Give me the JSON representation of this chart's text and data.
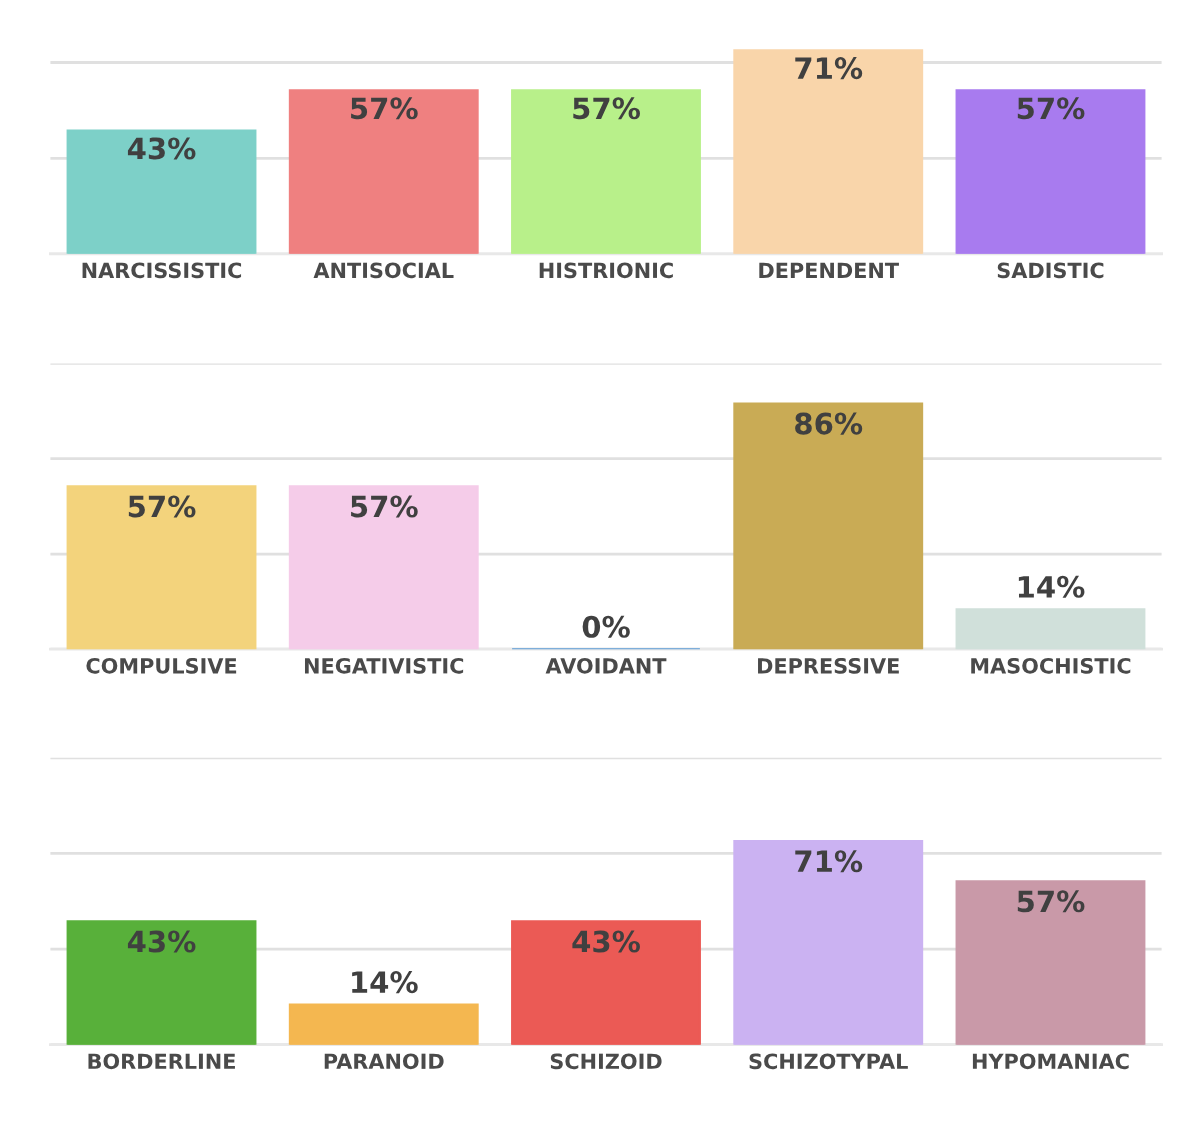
{
  "chart_data": [
    {
      "type": "bar",
      "categories": [
        "NARCISSISTIC",
        "ANTISOCIAL",
        "HISTRIONIC",
        "DEPENDENT",
        "SADISTIC"
      ],
      "values": [
        43,
        57,
        57,
        71,
        57
      ],
      "value_labels": [
        "43%",
        "57%",
        "57%",
        "71%",
        "57%"
      ],
      "colors": [
        "#7dd0c8",
        "#ef8080",
        "#b8f08a",
        "#f9d5aa",
        "#a87bef"
      ],
      "ref_lines": [
        {
          "axis": "y",
          "value": 33.3,
          "color": "#e0e0e0"
        },
        {
          "axis": "y",
          "value": 66.7,
          "color": "#e0e0e0"
        }
      ],
      "tick_labels": "x"
    },
    {
      "type": "bar",
      "categories": [
        "COMPULSIVE",
        "NEGATIVISTIC",
        "AVOIDANT",
        "DEPRESSIVE",
        "MASOCHISTIC"
      ],
      "values": [
        57,
        57,
        0,
        86,
        14
      ],
      "value_labels": [
        "57%",
        "57%",
        "0%",
        "86%",
        "14%"
      ],
      "colors": [
        "#f3d37c",
        "#f5cce9",
        "#5b9bd5",
        "#c9ab55",
        "#d0e0da"
      ],
      "ylim": [
        0,
        100
      ],
      "yticks": [
        {
          "value": 0,
          "label": null
        },
        {
          "value": 33.3,
          "label": null
        },
        {
          "value": 66.7,
          "label": null
        },
        {
          "value": 100,
          "label": null
        }
      ],
      "grid": "y",
      "tick_labels": "x"
    },
    {
      "type": "bar",
      "categories": [
        "BORDERLINE",
        "PARANOID",
        "SCHIZOID",
        "SCHIZOTYPAL",
        "HYPOMANIAC"
      ],
      "values": [
        43,
        14,
        43,
        71,
        57
      ],
      "value_labels": [
        "43%",
        "14%",
        "43%",
        "71%",
        "57%"
      ],
      "colors": [
        "#58b03a",
        "#f4b750",
        "#eb5a55",
        "#cbb2f2",
        "#c999a8"
      ],
      "ylim": [
        0,
        100
      ],
      "yticks": [
        {
          "value": 0,
          "label": null
        },
        {
          "value": 33.3,
          "label": null
        },
        {
          "value": 66.7,
          "label": null
        },
        {
          "value": 100,
          "label": null
        }
      ],
      "grid": "y",
      "tick_labels": "x"
    }
  ]
}
